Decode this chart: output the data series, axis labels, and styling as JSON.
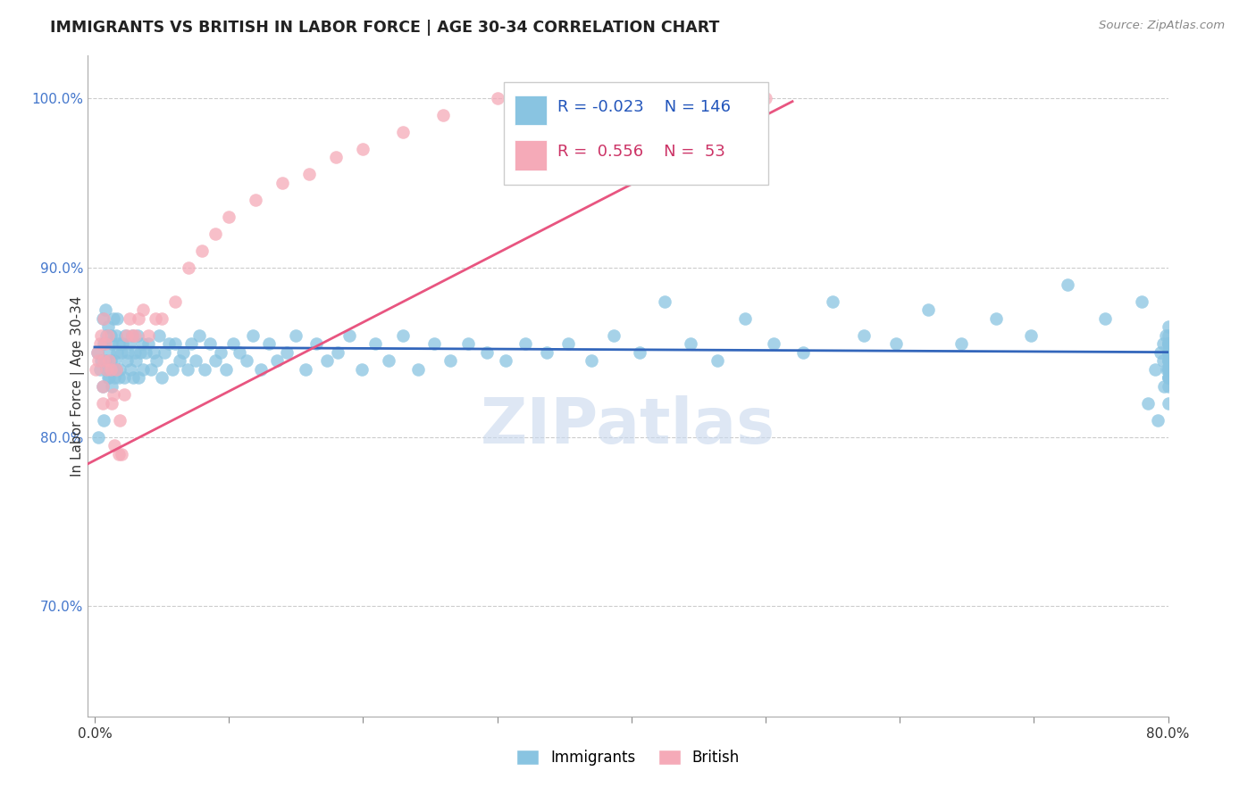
{
  "title": "IMMIGRANTS VS BRITISH IN LABOR FORCE | AGE 30-34 CORRELATION CHART",
  "source": "Source: ZipAtlas.com",
  "ylabel_val": "In Labor Force | Age 30-34",
  "x_tick_labels": [
    "0.0%",
    "",
    "",
    "",
    "",
    "",
    "",
    "",
    "80.0%"
  ],
  "x_tick_values": [
    0.0,
    0.1,
    0.2,
    0.3,
    0.4,
    0.5,
    0.6,
    0.7,
    0.8
  ],
  "y_tick_labels": [
    "70.0%",
    "80.0%",
    "90.0%",
    "100.0%"
  ],
  "y_tick_values": [
    0.7,
    0.8,
    0.9,
    1.0
  ],
  "xlim": [
    -0.005,
    0.8
  ],
  "ylim": [
    0.635,
    1.025
  ],
  "blue_color": "#89c4e1",
  "pink_color": "#f5aab8",
  "blue_line_color": "#3366bb",
  "pink_line_color": "#e85580",
  "legend_blue_R": "-0.023",
  "legend_blue_N": "146",
  "legend_pink_R": "0.556",
  "legend_pink_N": "53",
  "watermark": "ZIPatlas",
  "blue_trend_x": [
    0.0,
    0.8
  ],
  "blue_trend_y": [
    0.853,
    0.85
  ],
  "pink_trend_x": [
    -0.02,
    0.52
  ],
  "pink_trend_y": [
    0.778,
    0.998
  ],
  "immigrants_x": [
    0.002,
    0.003,
    0.004,
    0.005,
    0.006,
    0.006,
    0.007,
    0.007,
    0.008,
    0.008,
    0.009,
    0.009,
    0.01,
    0.01,
    0.011,
    0.011,
    0.012,
    0.012,
    0.013,
    0.013,
    0.014,
    0.014,
    0.015,
    0.015,
    0.016,
    0.016,
    0.017,
    0.017,
    0.018,
    0.018,
    0.019,
    0.02,
    0.021,
    0.022,
    0.023,
    0.024,
    0.025,
    0.026,
    0.027,
    0.028,
    0.029,
    0.03,
    0.031,
    0.032,
    0.033,
    0.034,
    0.035,
    0.036,
    0.038,
    0.04,
    0.042,
    0.044,
    0.046,
    0.048,
    0.05,
    0.052,
    0.055,
    0.058,
    0.06,
    0.063,
    0.066,
    0.069,
    0.072,
    0.075,
    0.078,
    0.082,
    0.086,
    0.09,
    0.094,
    0.098,
    0.103,
    0.108,
    0.113,
    0.118,
    0.124,
    0.13,
    0.136,
    0.143,
    0.15,
    0.157,
    0.165,
    0.173,
    0.181,
    0.19,
    0.199,
    0.209,
    0.219,
    0.23,
    0.241,
    0.253,
    0.265,
    0.278,
    0.292,
    0.306,
    0.321,
    0.337,
    0.353,
    0.37,
    0.387,
    0.406,
    0.425,
    0.444,
    0.464,
    0.485,
    0.506,
    0.528,
    0.55,
    0.573,
    0.597,
    0.621,
    0.646,
    0.672,
    0.698,
    0.725,
    0.753,
    0.78,
    0.785,
    0.79,
    0.792,
    0.794,
    0.796,
    0.796,
    0.797,
    0.798,
    0.799,
    0.8,
    0.8,
    0.8,
    0.8,
    0.8,
    0.8,
    0.8,
    0.8,
    0.8,
    0.8,
    0.8,
    0.8,
    0.8,
    0.8,
    0.8,
    0.8,
    0.8,
    0.8,
    0.8,
    0.8,
    0.8
  ],
  "immigrants_y": [
    0.85,
    0.8,
    0.84,
    0.845,
    0.83,
    0.87,
    0.855,
    0.81,
    0.845,
    0.875,
    0.84,
    0.86,
    0.835,
    0.865,
    0.85,
    0.835,
    0.86,
    0.845,
    0.855,
    0.83,
    0.84,
    0.87,
    0.845,
    0.835,
    0.86,
    0.84,
    0.85,
    0.87,
    0.835,
    0.855,
    0.84,
    0.85,
    0.855,
    0.835,
    0.86,
    0.845,
    0.85,
    0.855,
    0.84,
    0.86,
    0.835,
    0.85,
    0.845,
    0.86,
    0.835,
    0.85,
    0.855,
    0.84,
    0.85,
    0.855,
    0.84,
    0.85,
    0.845,
    0.86,
    0.835,
    0.85,
    0.855,
    0.84,
    0.855,
    0.845,
    0.85,
    0.84,
    0.855,
    0.845,
    0.86,
    0.84,
    0.855,
    0.845,
    0.85,
    0.84,
    0.855,
    0.85,
    0.845,
    0.86,
    0.84,
    0.855,
    0.845,
    0.85,
    0.86,
    0.84,
    0.855,
    0.845,
    0.85,
    0.86,
    0.84,
    0.855,
    0.845,
    0.86,
    0.84,
    0.855,
    0.845,
    0.855,
    0.85,
    0.845,
    0.855,
    0.85,
    0.855,
    0.845,
    0.86,
    0.85,
    0.88,
    0.855,
    0.845,
    0.87,
    0.855,
    0.85,
    0.88,
    0.86,
    0.855,
    0.875,
    0.855,
    0.87,
    0.86,
    0.89,
    0.87,
    0.88,
    0.82,
    0.84,
    0.81,
    0.85,
    0.855,
    0.845,
    0.83,
    0.86,
    0.84,
    0.855,
    0.82,
    0.845,
    0.86,
    0.835,
    0.855,
    0.84,
    0.85,
    0.865,
    0.835,
    0.85,
    0.84,
    0.855,
    0.83,
    0.845,
    0.855,
    0.84,
    0.85,
    0.845,
    0.835,
    0.85
  ],
  "british_x": [
    0.001,
    0.002,
    0.003,
    0.004,
    0.005,
    0.006,
    0.006,
    0.007,
    0.007,
    0.008,
    0.009,
    0.01,
    0.011,
    0.012,
    0.013,
    0.014,
    0.015,
    0.016,
    0.018,
    0.019,
    0.02,
    0.022,
    0.024,
    0.026,
    0.028,
    0.03,
    0.033,
    0.036,
    0.04,
    0.045,
    0.05,
    0.06,
    0.07,
    0.08,
    0.09,
    0.1,
    0.12,
    0.14,
    0.16,
    0.18,
    0.2,
    0.23,
    0.26,
    0.3,
    0.32,
    0.34,
    0.35,
    0.38,
    0.4,
    0.42,
    0.45,
    0.48,
    0.5
  ],
  "british_y": [
    0.84,
    0.85,
    0.845,
    0.855,
    0.86,
    0.83,
    0.82,
    0.845,
    0.87,
    0.855,
    0.84,
    0.86,
    0.845,
    0.84,
    0.82,
    0.825,
    0.795,
    0.84,
    0.79,
    0.81,
    0.79,
    0.825,
    0.86,
    0.87,
    0.86,
    0.86,
    0.87,
    0.875,
    0.86,
    0.87,
    0.87,
    0.88,
    0.9,
    0.91,
    0.92,
    0.93,
    0.94,
    0.95,
    0.955,
    0.965,
    0.97,
    0.98,
    0.99,
    1.0,
    1.0,
    1.0,
    1.0,
    1.0,
    1.0,
    1.0,
    1.0,
    1.0,
    1.0
  ]
}
